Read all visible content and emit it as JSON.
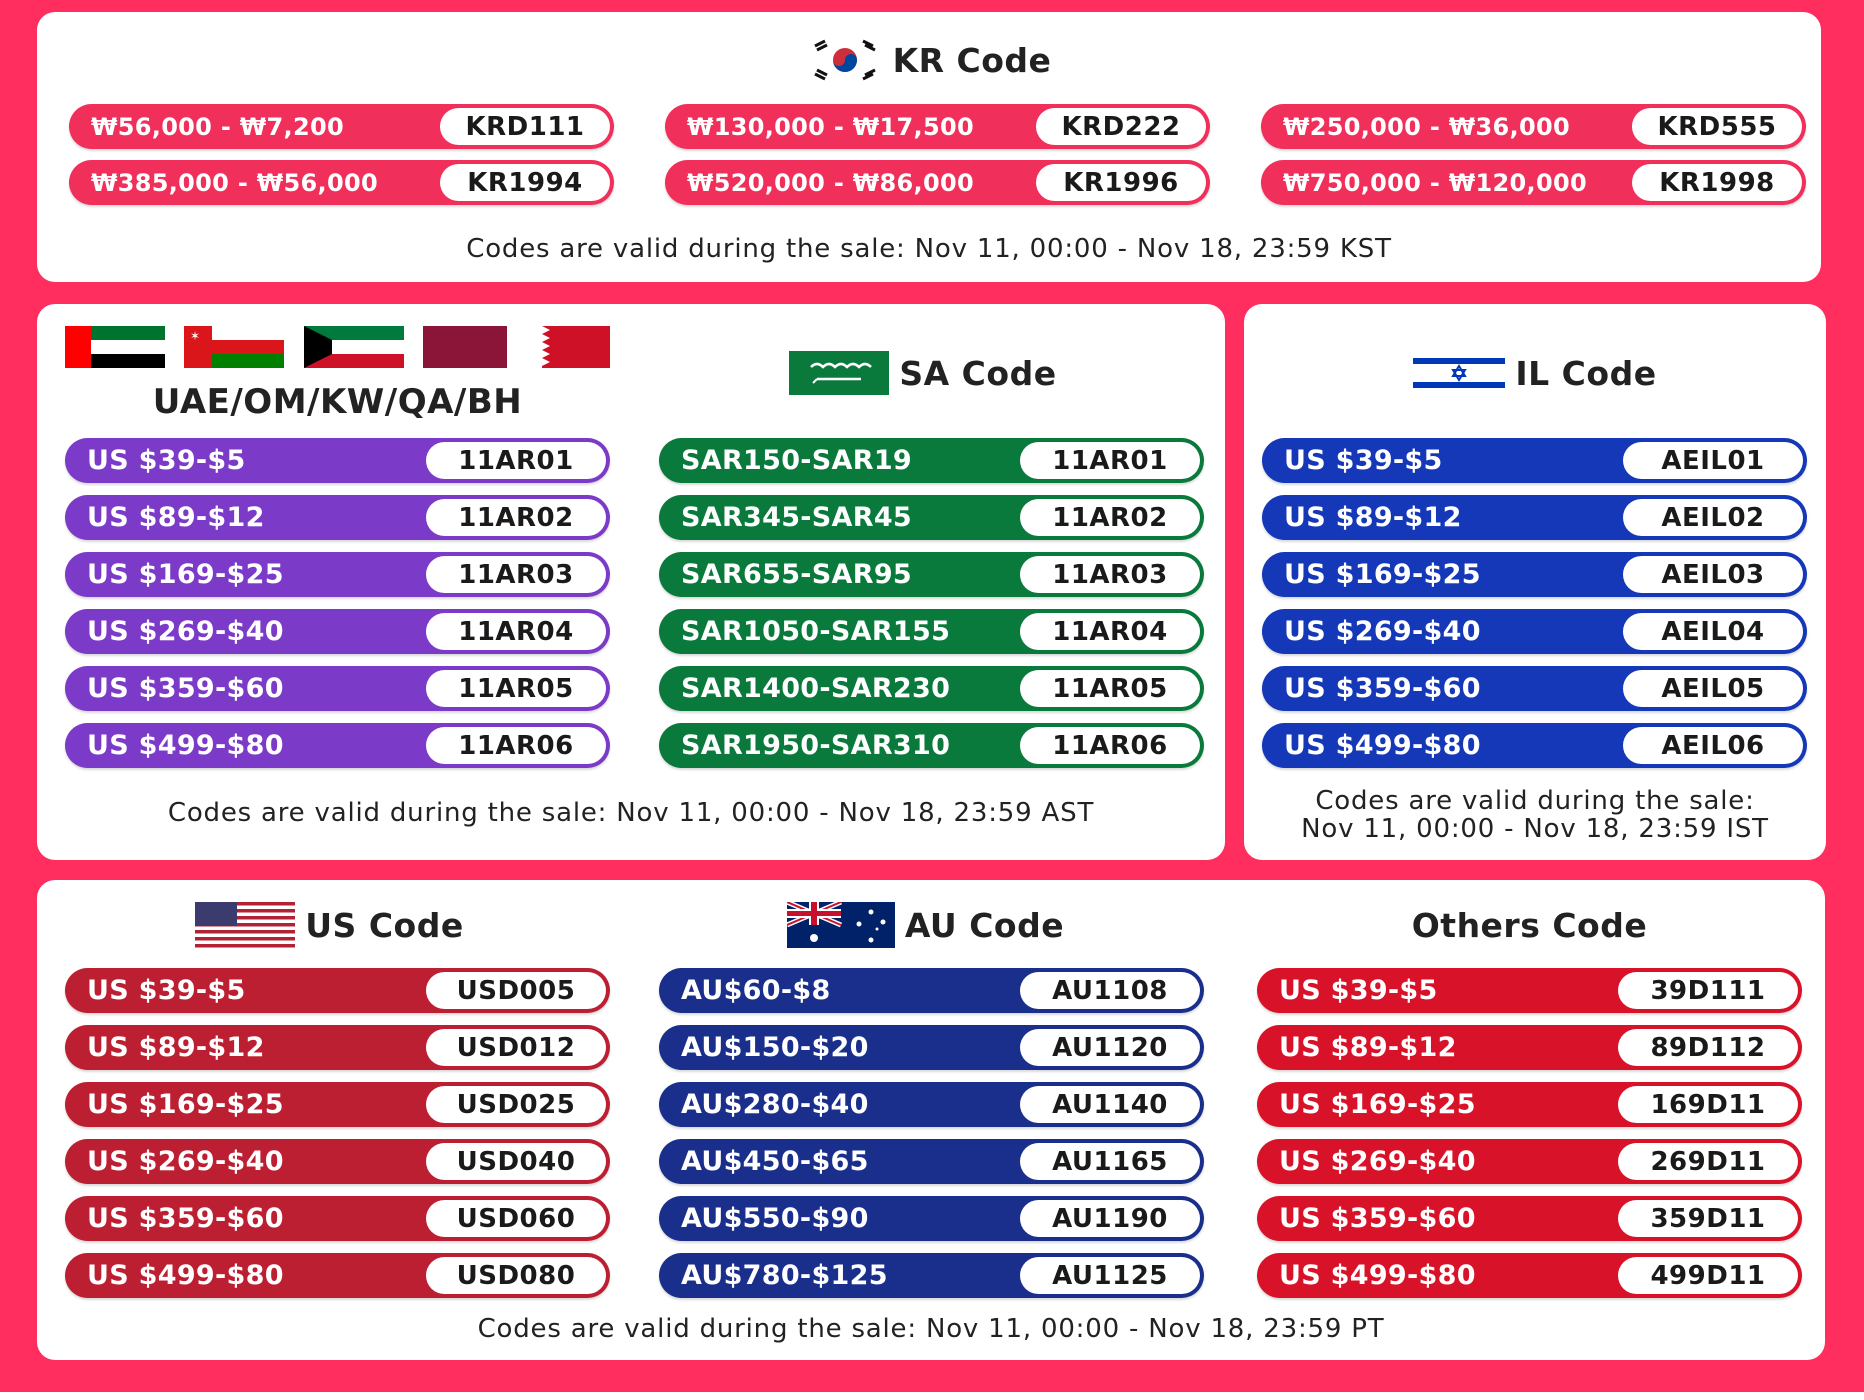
{
  "colors": {
    "background": "#ff2e5f",
    "kr_pill": "#f0305a",
    "ar_pill": "#7c3ac8",
    "sa_pill": "#0a7a3c",
    "il_pill": "#1538b8",
    "us_pill": "#bd1f32",
    "au_pill": "#1a2f8c",
    "others_pill": "#d81228"
  },
  "kr": {
    "title": "KR Code",
    "flag_icon": "south-korea-flag-icon",
    "items": [
      {
        "range": "₩56,000 - ₩7,200",
        "code": "KRD111"
      },
      {
        "range": "₩130,000 - ₩17,500",
        "code": "KRD222"
      },
      {
        "range": "₩250,000 - ₩36,000",
        "code": "KRD555"
      },
      {
        "range": "₩385,000 - ₩56,000",
        "code": "KR1994"
      },
      {
        "range": "₩520,000 - ₩86,000",
        "code": "KR1996"
      },
      {
        "range": "₩750,000 - ₩120,000",
        "code": "KR1998"
      }
    ],
    "note": "Codes are valid during the sale: Nov 11, 00:00 - Nov 18, 23:59 KST"
  },
  "ar": {
    "title": "UAE/OM/KW/QA/BH",
    "flag_icons": [
      "uae-flag-icon",
      "oman-flag-icon",
      "kuwait-flag-icon",
      "qatar-flag-icon",
      "bahrain-flag-icon"
    ],
    "items": [
      {
        "range": "US $39-$5",
        "code": "11AR01"
      },
      {
        "range": "US $89-$12",
        "code": "11AR02"
      },
      {
        "range": "US $169-$25",
        "code": "11AR03"
      },
      {
        "range": "US $269-$40",
        "code": "11AR04"
      },
      {
        "range": "US $359-$60",
        "code": "11AR05"
      },
      {
        "range": "US $499-$80",
        "code": "11AR06"
      }
    ]
  },
  "sa": {
    "title": "SA Code",
    "flag_icon": "saudi-arabia-flag-icon",
    "items": [
      {
        "range": "SAR150-SAR19",
        "code": "11AR01"
      },
      {
        "range": "SAR345-SAR45",
        "code": "11AR02"
      },
      {
        "range": "SAR655-SAR95",
        "code": "11AR03"
      },
      {
        "range": "SAR1050-SAR155",
        "code": "11AR04"
      },
      {
        "range": "SAR1400-SAR230",
        "code": "11AR05"
      },
      {
        "range": "SAR1950-SAR310",
        "code": "11AR06"
      }
    ],
    "note": "Codes are valid during the sale: Nov 11, 00:00 - Nov 18, 23:59 AST"
  },
  "il": {
    "title": "IL Code",
    "flag_icon": "israel-flag-icon",
    "items": [
      {
        "range": "US $39-$5",
        "code": "AEIL01"
      },
      {
        "range": "US $89-$12",
        "code": "AEIL02"
      },
      {
        "range": "US $169-$25",
        "code": "AEIL03"
      },
      {
        "range": "US $269-$40",
        "code": "AEIL04"
      },
      {
        "range": "US $359-$60",
        "code": "AEIL05"
      },
      {
        "range": "US $499-$80",
        "code": "AEIL06"
      }
    ],
    "note_line1": "Codes are valid during the sale:",
    "note_line2": "Nov 11, 00:00 - Nov 18, 23:59 IST"
  },
  "us": {
    "title": "US Code",
    "flag_icon": "usa-flag-icon",
    "items": [
      {
        "range": "US $39-$5",
        "code": "USD005"
      },
      {
        "range": "US $89-$12",
        "code": "USD012"
      },
      {
        "range": "US $169-$25",
        "code": "USD025"
      },
      {
        "range": "US $269-$40",
        "code": "USD040"
      },
      {
        "range": "US $359-$60",
        "code": "USD060"
      },
      {
        "range": "US $499-$80",
        "code": "USD080"
      }
    ]
  },
  "au": {
    "title": "AU Code",
    "flag_icon": "australia-flag-icon",
    "items": [
      {
        "range": "AU$60-$8",
        "code": "AU1108"
      },
      {
        "range": "AU$150-$20",
        "code": "AU1120"
      },
      {
        "range": "AU$280-$40",
        "code": "AU1140"
      },
      {
        "range": "AU$450-$65",
        "code": "AU1165"
      },
      {
        "range": "AU$550-$90",
        "code": "AU1190"
      },
      {
        "range": "AU$780-$125",
        "code": "AU1125"
      }
    ]
  },
  "others": {
    "title": "Others Code",
    "items": [
      {
        "range": "US $39-$5",
        "code": "39D111"
      },
      {
        "range": "US $89-$12",
        "code": "89D112"
      },
      {
        "range": "US $169-$25",
        "code": "169D11"
      },
      {
        "range": "US $269-$40",
        "code": "269D11"
      },
      {
        "range": "US $359-$60",
        "code": "359D11"
      },
      {
        "range": "US $499-$80",
        "code": "499D11"
      }
    ],
    "note": "Codes are valid during the sale: Nov 11, 00:00 - Nov 18, 23:59 PT"
  }
}
